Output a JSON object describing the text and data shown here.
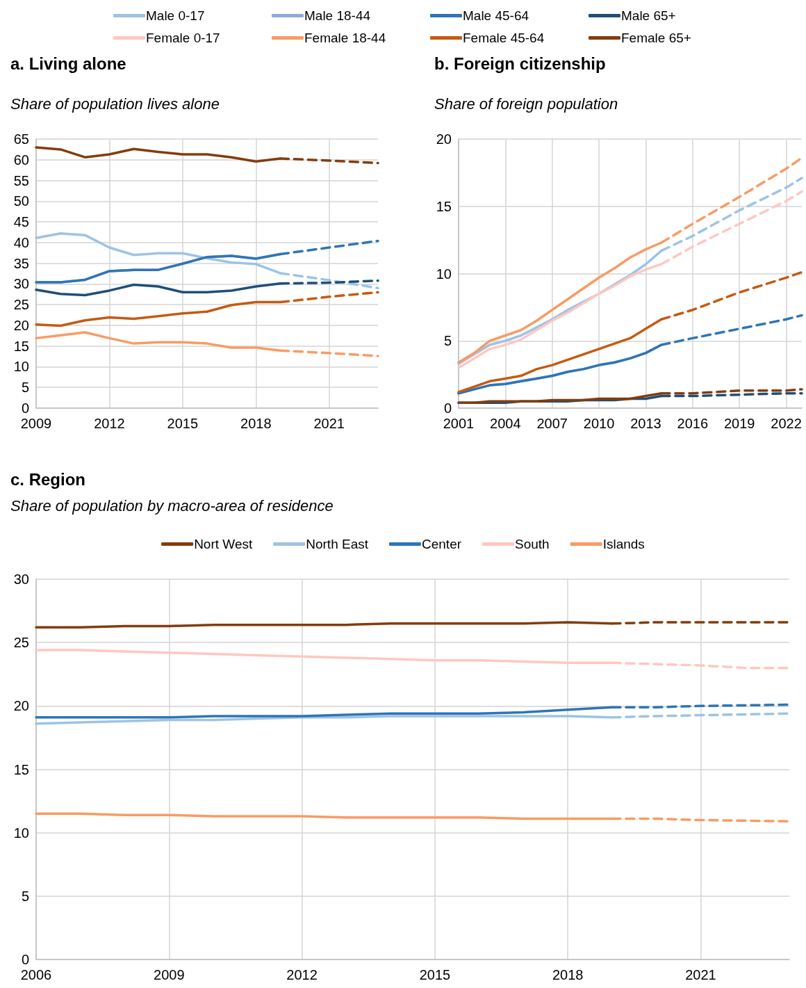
{
  "chart_data": [
    {
      "type": "line",
      "title": "a. Living alone",
      "subtitle": "Share of population lives alone",
      "x": [
        2009,
        2010,
        2011,
        2012,
        2013,
        2014,
        2015,
        2016,
        2017,
        2018,
        2019
      ],
      "xlim": [
        2009,
        2023
      ],
      "xticks": [
        2009,
        2012,
        2015,
        2018,
        2021
      ],
      "ylim": [
        0,
        65
      ],
      "yticks": [
        0,
        5,
        10,
        15,
        20,
        25,
        30,
        35,
        40,
        45,
        50,
        55,
        60,
        65
      ],
      "grid": true,
      "marker": "none",
      "series": [
        {
          "color": "#843c0c",
          "values": [
            63,
            62.5,
            60.6,
            61.3,
            62.6,
            61.9,
            61.3,
            61.3,
            60.6,
            59.6,
            60.3
          ]
        },
        {
          "color": "#9dc3e6",
          "values": [
            41.1,
            42.2,
            41.8,
            38.8,
            37.0,
            37.4,
            37.4,
            36.2,
            35.2,
            34.8,
            32.6
          ]
        },
        {
          "color": "#8faadc",
          "values": [
            30.4,
            30.4,
            31.0,
            33.1,
            33.4,
            33.4,
            34.9,
            36.5,
            36.8,
            36.1,
            37.2
          ]
        },
        {
          "color": "#2e75b6",
          "values": [
            30.4,
            30.4,
            31.0,
            33.1,
            33.4,
            33.4,
            34.9,
            36.5,
            36.8,
            36.1,
            37.2
          ]
        },
        {
          "color": "#1f4e79",
          "values": [
            28.6,
            27.6,
            27.3,
            28.4,
            29.8,
            29.4,
            28.0,
            28.0,
            28.4,
            29.4,
            30.1
          ]
        },
        {
          "color": "#c55a11",
          "values": [
            20.2,
            19.9,
            21.2,
            21.9,
            21.6,
            22.2,
            22.9,
            23.3,
            24.9,
            25.6,
            25.6
          ]
        },
        {
          "color": "#fa9a64",
          "values": [
            16.9,
            17.6,
            18.3,
            16.9,
            15.6,
            15.9,
            15.9,
            15.6,
            14.6,
            14.6,
            13.9
          ]
        },
        {
          "color": "#843c0c",
          "line_style": "dashed",
          "x": [
            2019,
            2021,
            2023
          ],
          "values": [
            60.3,
            59.8,
            59.2
          ]
        },
        {
          "color": "#9dc3e6",
          "line_style": "dashed",
          "x": [
            2019,
            2021,
            2023
          ],
          "values": [
            32.6,
            30.9,
            29.0
          ]
        },
        {
          "color": "#2e75b6",
          "line_style": "dashed",
          "x": [
            2019,
            2021,
            2023
          ],
          "values": [
            37.2,
            38.8,
            40.4
          ]
        },
        {
          "color": "#1f4e79",
          "line_style": "dashed",
          "x": [
            2019,
            2021,
            2023
          ],
          "values": [
            30.1,
            30.3,
            30.8
          ]
        },
        {
          "color": "#c55a11",
          "line_style": "dashed",
          "x": [
            2019,
            2021,
            2023
          ],
          "values": [
            25.6,
            26.9,
            28.0
          ]
        },
        {
          "color": "#fa9a64",
          "line_style": "dashed",
          "x": [
            2019,
            2021,
            2023
          ],
          "values": [
            13.9,
            13.3,
            12.6
          ]
        }
      ]
    },
    {
      "type": "line",
      "title": "b. Foreign citizenship",
      "subtitle": "Share of foreign population",
      "x": [
        2001,
        2002,
        2003,
        2004,
        2005,
        2006,
        2007,
        2008,
        2009,
        2010,
        2011,
        2012,
        2013,
        2014
      ],
      "xlim": [
        2001,
        2023
      ],
      "xticks": [
        2001,
        2004,
        2007,
        2010,
        2013,
        2016,
        2019,
        2022
      ],
      "ylim": [
        0,
        20
      ],
      "yticks": [
        0,
        5,
        10,
        15,
        20
      ],
      "grid": true,
      "marker": "none",
      "legend": "top",
      "series": [
        {
          "name": "Male 0-17",
          "color": "#9dc3e6",
          "values": [
            3.3,
            4.0,
            4.7,
            5.0,
            5.4,
            6.0,
            6.6,
            7.3,
            7.9,
            8.5,
            9.2,
            9.9,
            10.7,
            11.7
          ]
        },
        {
          "name": "Male 18-44",
          "color": "#8faadc",
          "values": [
            1.1,
            1.4,
            1.7,
            1.8,
            2.0,
            2.2,
            2.4,
            2.7,
            2.9,
            3.2,
            3.4,
            3.7,
            4.1,
            4.7
          ]
        },
        {
          "name": "Male 45-64",
          "color": "#2e75b6",
          "values": [
            1.1,
            1.4,
            1.7,
            1.8,
            2.0,
            2.2,
            2.4,
            2.7,
            2.9,
            3.2,
            3.4,
            3.7,
            4.1,
            4.7
          ]
        },
        {
          "name": "Male 65+",
          "color": "#1f4e79",
          "values": [
            0.4,
            0.4,
            0.4,
            0.4,
            0.5,
            0.5,
            0.5,
            0.5,
            0.6,
            0.6,
            0.6,
            0.7,
            0.7,
            0.9
          ]
        },
        {
          "name": "Female 0-17",
          "color": "#ffc7c0",
          "values": [
            3.0,
            3.7,
            4.4,
            4.7,
            5.1,
            5.8,
            6.5,
            7.1,
            7.8,
            8.5,
            9.1,
            9.8,
            10.3,
            10.7
          ]
        },
        {
          "name": "Female 18-44",
          "color": "#fa9a64",
          "values": [
            3.4,
            4.1,
            5.0,
            5.4,
            5.8,
            6.5,
            7.3,
            8.1,
            8.9,
            9.7,
            10.4,
            11.2,
            11.8,
            12.3
          ]
        },
        {
          "name": "Female 45-64",
          "color": "#c55a11",
          "values": [
            1.2,
            1.6,
            2.0,
            2.2,
            2.4,
            2.9,
            3.2,
            3.6,
            4.0,
            4.4,
            4.8,
            5.2,
            5.9,
            6.6
          ]
        },
        {
          "name": "Female 65+",
          "color": "#843c0c",
          "values": [
            0.4,
            0.4,
            0.5,
            0.5,
            0.5,
            0.5,
            0.6,
            0.6,
            0.6,
            0.7,
            0.7,
            0.7,
            0.9,
            1.1
          ]
        },
        {
          "color": "#9dc3e6",
          "line_style": "dashed",
          "x": [
            2014,
            2016,
            2019,
            2022,
            2023
          ],
          "values": [
            11.7,
            12.8,
            14.7,
            16.4,
            17.1
          ]
        },
        {
          "color": "#2e75b6",
          "line_style": "dashed",
          "x": [
            2014,
            2016,
            2019,
            2022,
            2023
          ],
          "values": [
            4.7,
            5.2,
            5.9,
            6.6,
            6.9
          ]
        },
        {
          "color": "#1f4e79",
          "line_style": "dashed",
          "x": [
            2014,
            2016,
            2019,
            2022,
            2023
          ],
          "values": [
            0.9,
            0.9,
            1.0,
            1.1,
            1.1
          ]
        },
        {
          "color": "#ffc7c0",
          "line_style": "dashed",
          "x": [
            2014,
            2016,
            2019,
            2022,
            2023
          ],
          "values": [
            10.7,
            12.0,
            13.7,
            15.4,
            16.1
          ]
        },
        {
          "color": "#fa9a64",
          "line_style": "dashed",
          "x": [
            2014,
            2016,
            2019,
            2022,
            2023
          ],
          "values": [
            12.3,
            13.7,
            15.7,
            17.8,
            18.6
          ]
        },
        {
          "color": "#c55a11",
          "line_style": "dashed",
          "x": [
            2014,
            2016,
            2019,
            2022,
            2023
          ],
          "values": [
            6.6,
            7.3,
            8.6,
            9.7,
            10.1
          ]
        },
        {
          "color": "#843c0c",
          "line_style": "dashed",
          "x": [
            2014,
            2016,
            2019,
            2022,
            2023
          ],
          "values": [
            1.1,
            1.1,
            1.3,
            1.3,
            1.4
          ]
        }
      ]
    },
    {
      "type": "line",
      "title": "c. Region",
      "subtitle": "Share of population by macro-area of residence",
      "x": [
        2006,
        2007,
        2008,
        2009,
        2010,
        2011,
        2012,
        2013,
        2014,
        2015,
        2016,
        2017,
        2018,
        2019
      ],
      "xlim": [
        2006,
        2023
      ],
      "xticks": [
        2006,
        2009,
        2012,
        2015,
        2018,
        2021
      ],
      "ylim": [
        0,
        30
      ],
      "yticks": [
        0,
        5,
        10,
        15,
        20,
        25,
        30
      ],
      "grid": true,
      "marker": "none",
      "legend": "top",
      "series": [
        {
          "name": "Nort West",
          "color": "#843c0c",
          "values": [
            26.2,
            26.2,
            26.3,
            26.3,
            26.4,
            26.4,
            26.4,
            26.4,
            26.5,
            26.5,
            26.5,
            26.5,
            26.6,
            26.5
          ]
        },
        {
          "name": "North East",
          "color": "#9dc3e6",
          "values": [
            18.6,
            18.7,
            18.8,
            18.9,
            18.9,
            19.0,
            19.1,
            19.1,
            19.2,
            19.2,
            19.2,
            19.2,
            19.2,
            19.1
          ]
        },
        {
          "name": "Center",
          "color": "#2e75b6",
          "values": [
            19.1,
            19.1,
            19.1,
            19.1,
            19.2,
            19.2,
            19.2,
            19.3,
            19.4,
            19.4,
            19.4,
            19.5,
            19.7,
            19.9
          ]
        },
        {
          "name": "South",
          "color": "#ffc7c0",
          "values": [
            24.4,
            24.4,
            24.3,
            24.2,
            24.1,
            24.0,
            23.9,
            23.8,
            23.7,
            23.6,
            23.6,
            23.5,
            23.4,
            23.4
          ]
        },
        {
          "name": "Islands",
          "color": "#fa9a64",
          "values": [
            11.5,
            11.5,
            11.4,
            11.4,
            11.3,
            11.3,
            11.3,
            11.2,
            11.2,
            11.2,
            11.2,
            11.1,
            11.1,
            11.1
          ]
        },
        {
          "color": "#843c0c",
          "line_style": "dashed",
          "x": [
            2019,
            2020,
            2023
          ],
          "values": [
            26.5,
            26.6,
            26.6
          ]
        },
        {
          "color": "#9dc3e6",
          "line_style": "dashed",
          "x": [
            2019,
            2020,
            2023
          ],
          "values": [
            19.1,
            19.2,
            19.4
          ]
        },
        {
          "color": "#2e75b6",
          "line_style": "dashed",
          "x": [
            2019,
            2020,
            2021,
            2023
          ],
          "values": [
            19.9,
            19.9,
            20.0,
            20.1
          ]
        },
        {
          "color": "#ffc7c0",
          "line_style": "dashed",
          "x": [
            2019,
            2021,
            2022,
            2023
          ],
          "values": [
            23.4,
            23.2,
            23.0,
            23.0
          ]
        },
        {
          "color": "#fa9a64",
          "line_style": "dashed",
          "x": [
            2019,
            2020,
            2021,
            2023
          ],
          "values": [
            11.1,
            11.1,
            11.0,
            10.9
          ]
        }
      ]
    }
  ]
}
